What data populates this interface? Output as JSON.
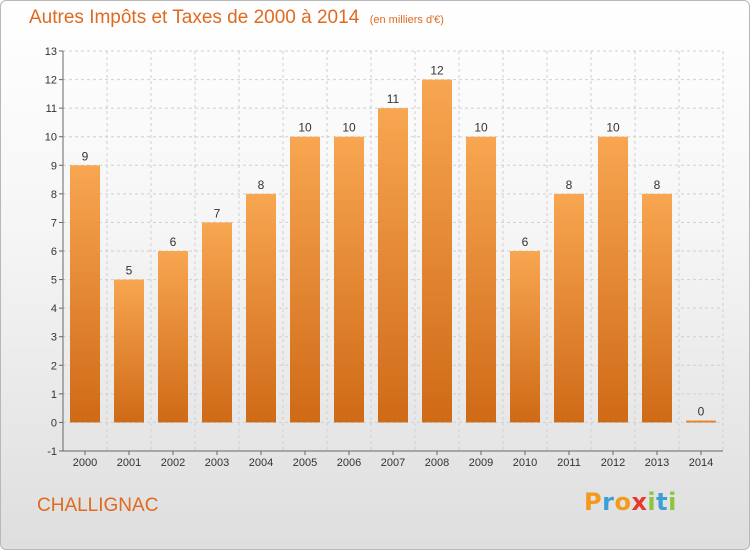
{
  "title": "Autres Impôts et Taxes de 2000 à 2014",
  "subtitle": "(en milliers d'€)",
  "commune": "CHALLIGNAC",
  "logo": {
    "text": "Proxiti",
    "letters": [
      {
        "ch": "P",
        "color": "#f39a1e"
      },
      {
        "ch": "r",
        "color": "#3d9fd8"
      },
      {
        "ch": "o",
        "color": "#f39a1e"
      },
      {
        "ch": "x",
        "color": "#e8392d"
      },
      {
        "ch": "i",
        "color": "#8cc63e"
      },
      {
        "ch": "t",
        "color": "#3d9fd8"
      },
      {
        "ch": "i",
        "color": "#8cc63e"
      }
    ]
  },
  "colors": {
    "accent": "#e06a20",
    "bar_light": "#f8a651",
    "bar_dark": "#cf6a17",
    "axis": "#666666",
    "grid": "#cfcfcf"
  },
  "chart_data": {
    "type": "bar",
    "categories": [
      "2000",
      "2001",
      "2002",
      "2003",
      "2004",
      "2005",
      "2006",
      "2007",
      "2008",
      "2009",
      "2010",
      "2011",
      "2012",
      "2013",
      "2014"
    ],
    "values": [
      9,
      5,
      6,
      7,
      8,
      10,
      10,
      11,
      12,
      10,
      6,
      8,
      10,
      8,
      0
    ],
    "ylim": [
      -1,
      13
    ],
    "yticks": [
      -1,
      0,
      1,
      2,
      3,
      4,
      5,
      6,
      7,
      8,
      9,
      10,
      11,
      12,
      13
    ],
    "grid": true,
    "legend": "none"
  }
}
